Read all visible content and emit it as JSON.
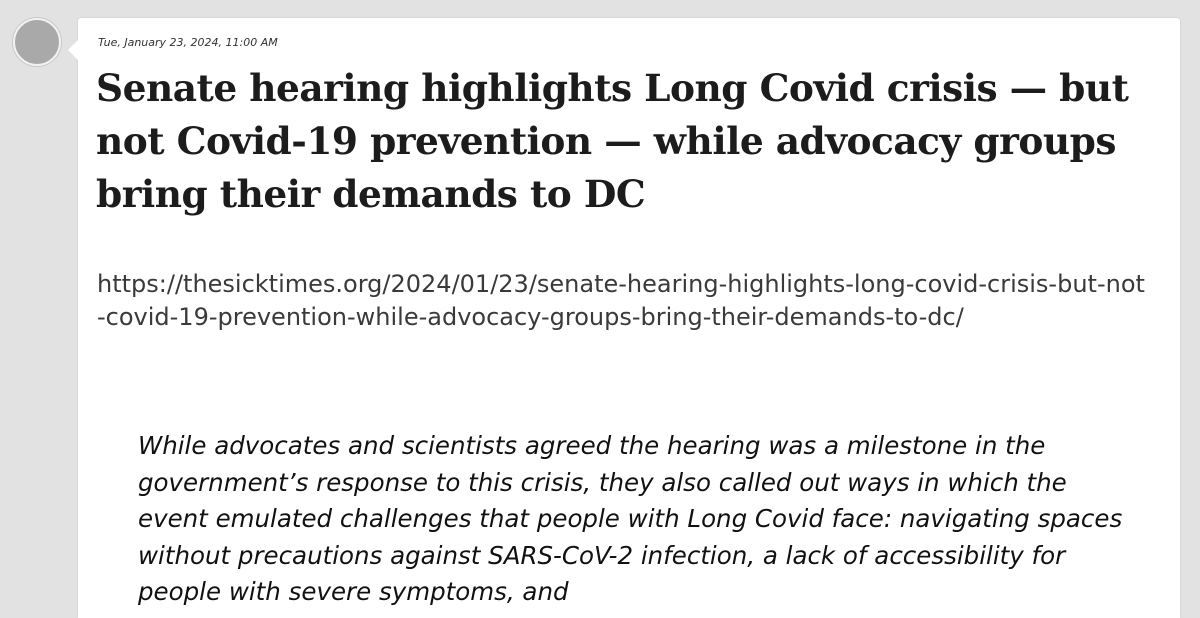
{
  "post": {
    "timestamp": "Tue, January 23, 2024, 11:00 AM",
    "title": "Senate hearing highlights Long Covid crisis — but not Covid-19 prevention — while advocacy groups bring their demands to DC",
    "url": "https://thesicktimes.org/2024/01/23/senate-hearing-highlights-long-covid-crisis-but-not-covid-19-prevention-while-advocacy-groups-bring-their-demands-to-dc/",
    "quote": "While advocates and scientists agreed the hearing was a milestone in the government’s response to this crisis, they also called out ways in which the event emulated challenges that people with Long Covid face: navigating spaces without precautions against SARS-CoV-2 infection, a lack of accessibility for people with severe symptoms, and"
  }
}
